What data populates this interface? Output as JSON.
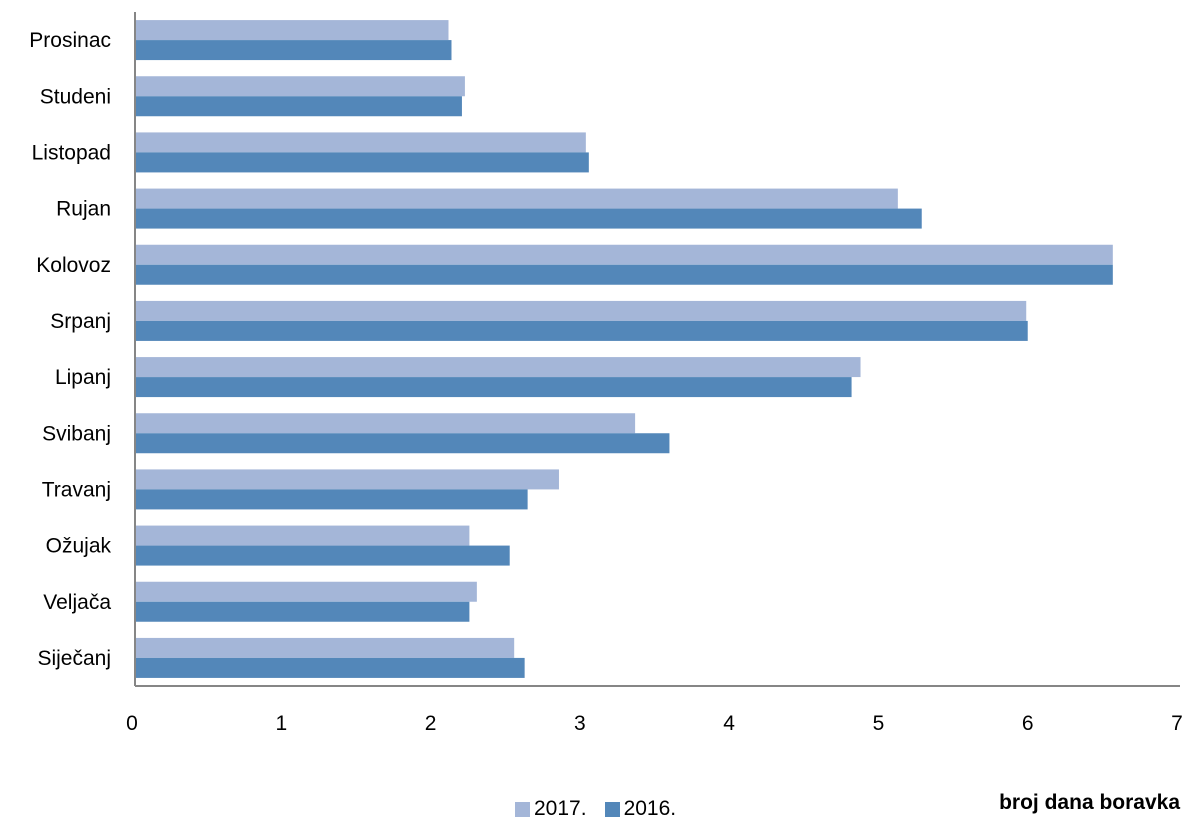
{
  "chart_data": {
    "type": "bar",
    "orientation": "horizontal",
    "categories": [
      "Siječanj",
      "Veljača",
      "Ožujak",
      "Travanj",
      "Svibanj",
      "Lipanj",
      "Srpanj",
      "Kolovoz",
      "Rujan",
      "Listopad",
      "Studeni",
      "Prosinac"
    ],
    "series": [
      {
        "name": "2017.",
        "color": "#a4b6d8",
        "values": [
          2.54,
          2.29,
          2.24,
          2.84,
          3.35,
          4.86,
          5.97,
          6.55,
          5.11,
          3.02,
          2.21,
          2.1
        ]
      },
      {
        "name": "2016.",
        "color": "#5387b9",
        "values": [
          2.61,
          2.24,
          2.51,
          2.63,
          3.58,
          4.8,
          5.98,
          6.55,
          5.27,
          3.04,
          2.19,
          2.12
        ]
      }
    ],
    "xlim": [
      0,
      7
    ],
    "xticks": [
      "0",
      "1",
      "2",
      "3",
      "4",
      "5",
      "6",
      "7"
    ],
    "xlabel": "broj dana boravka",
    "legend_position": "bottom",
    "grid": false
  }
}
